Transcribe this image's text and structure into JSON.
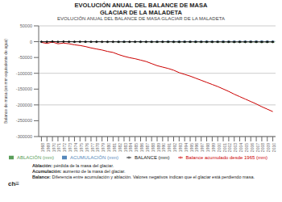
{
  "chart_data": {
    "type": "bar",
    "title": "EVOLUCIÓN ANUAL DEL BALANCE DE MASA\nGLACIAR DE LA MALADETA",
    "subtitle": "EVOLUCIÓN ANUAL DEL BALANCE DE MASA GLACIAR DE LA MALADETA",
    "ylabel": "Balance de masa (en mm equivalente de agua)",
    "categories": [
      "1968",
      "1969",
      "1970",
      "1971",
      "1972",
      "1973",
      "1974",
      "1975",
      "1976",
      "1977",
      "1978",
      "1979",
      "1980",
      "1981",
      "1982",
      "1983",
      "1984",
      "1985",
      "1986",
      "1987",
      "1988",
      "1989",
      "1990",
      "1991",
      "1992",
      "1993",
      "1994",
      "1995",
      "1996",
      "1997",
      "1998",
      "1999",
      "2000",
      "2001",
      "2002",
      "2003",
      "2004",
      "2005",
      "2006",
      "2007",
      "2008",
      "2009",
      "2010"
    ],
    "series": [
      {
        "name": "ABLACIÓN (mm)",
        "type": "bar",
        "color": "#5a9e5a",
        "values": [
          -1200,
          -1500,
          -1800,
          -1600,
          -1400,
          -1800,
          -2000,
          -1600,
          -2200,
          -1900,
          -2100,
          -2000,
          -2400,
          -1800,
          -2600,
          -2800,
          -2000,
          -2200,
          -2600,
          -2400,
          -2800,
          -3000,
          -2600,
          -3200,
          -3000,
          -3500,
          -3200,
          -3000,
          -3400,
          -3200,
          -3600,
          -3400,
          -3200,
          -3600,
          -3400,
          -3800,
          -3600,
          -3800,
          -3600,
          -3800,
          -4000,
          -3800,
          -3600
        ]
      },
      {
        "name": "ACUMULACIÓN (mm)",
        "type": "bar",
        "color": "#5588bb",
        "values": [
          1000,
          1200,
          1400,
          1100,
          1200,
          1600,
          1700,
          1400,
          1900,
          1500,
          1800,
          1700,
          2000,
          1500,
          2000,
          2300,
          1600,
          1900,
          2200,
          2000,
          2200,
          2400,
          2200,
          2800,
          2500,
          2800,
          2700,
          2500,
          2800,
          2600,
          3000,
          2800,
          2600,
          2900,
          2700,
          3000,
          2900,
          3100,
          2900,
          3100,
          3200,
          3100,
          2900
        ]
      },
      {
        "name": "BALANCE (mm)",
        "type": "line",
        "color": "#111111",
        "marker": "o",
        "values": [
          -200,
          -300,
          400,
          -500,
          200,
          -200,
          -300,
          -200,
          -300,
          -400,
          -300,
          -300,
          -400,
          -300,
          -600,
          -500,
          -400,
          -300,
          -400,
          -400,
          -600,
          -600,
          -400,
          -400,
          -500,
          -700,
          -500,
          -500,
          -600,
          -600,
          -600,
          -600,
          -600,
          -700,
          -700,
          -800,
          -700,
          -700,
          -700,
          -700,
          -800,
          -700,
          -700
        ]
      },
      {
        "name": "Balance acumulado desde 1965 (mm)",
        "type": "line",
        "color": "#cc0000",
        "values": [
          -2200,
          -5500,
          -1100,
          -6600,
          -4400,
          -6600,
          -9900,
          -12100,
          -15400,
          -19800,
          -23100,
          -26400,
          -30800,
          -34100,
          -40700,
          -46200,
          -50600,
          -53900,
          -58300,
          -62700,
          -69300,
          -75900,
          -80300,
          -84700,
          -90200,
          -97900,
          -103400,
          -108900,
          -115500,
          -122100,
          -128700,
          -135300,
          -141900,
          -149600,
          -157300,
          -166100,
          -173800,
          -181500,
          -189200,
          -196900,
          -205700,
          -213400,
          -221100
        ]
      }
    ],
    "ylim": [
      -300000,
      50000
    ],
    "yticks": [
      50000,
      0,
      -50000,
      -100000,
      -150000,
      -200000,
      -250000,
      -300000
    ],
    "grid": true,
    "legend": "lower right",
    "stacked": true,
    "annotations": [
      {
        "bold": "Ablación:",
        "text": "pérdida de la masa del glaciar."
      },
      {
        "bold": "Acumulación:",
        "text": "aumento de la masa del glaciar."
      },
      {
        "bold": "Balance:",
        "text": "Diferencia entre acumulación y ablación. Valores negativos indican que el glaciar está perdiendo masa."
      },
      {
        "bold": "ch≡"
      }
    ]
  }
}
